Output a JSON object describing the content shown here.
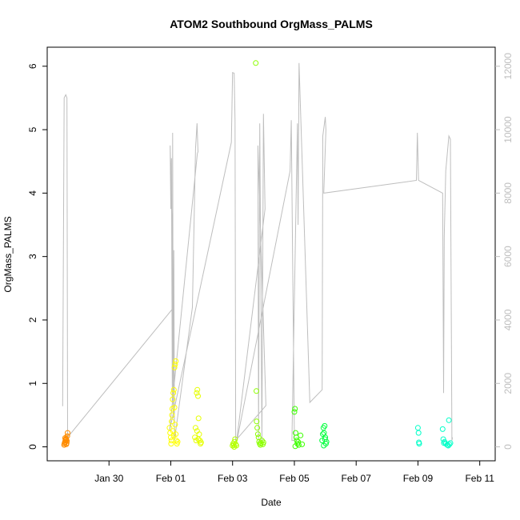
{
  "chart_data": {
    "type": "scatter",
    "title": "ATOM2 Southbound OrgMass_PALMS",
    "xlabel": "Date",
    "ylabel": "OrgMass_PALMS",
    "x_unit": "days",
    "x_ticks": [
      {
        "label": "Jan 30",
        "value": 30
      },
      {
        "label": "Feb 01",
        "value": 32
      },
      {
        "label": "Feb 03",
        "value": 34
      },
      {
        "label": "Feb 05",
        "value": 36
      },
      {
        "label": "Feb 07",
        "value": 38
      },
      {
        "label": "Feb 09",
        "value": 40
      },
      {
        "label": "Feb 11",
        "value": 42
      }
    ],
    "xlim": [
      28.0,
      42.5
    ],
    "ylim": [
      -0.22,
      6.3
    ],
    "y_ticks": [
      0,
      1,
      2,
      3,
      4,
      5,
      6
    ],
    "y2_ticks": [
      0,
      2000,
      4000,
      6000,
      8000,
      10000,
      12000
    ],
    "y2lim": [
      -440,
      12600
    ],
    "grid": false,
    "series": [
      {
        "color": "#FF8C00",
        "points": [
          [
            28.55,
            0.03
          ],
          [
            28.56,
            0.05
          ],
          [
            28.57,
            0.07
          ],
          [
            28.58,
            0.08
          ],
          [
            28.59,
            0.1
          ],
          [
            28.6,
            0.12
          ],
          [
            28.61,
            0.13
          ],
          [
            28.62,
            0.11
          ],
          [
            28.63,
            0.06
          ],
          [
            28.64,
            0.09
          ],
          [
            28.65,
            0.17
          ],
          [
            28.66,
            0.22
          ],
          [
            28.58,
            0.14
          ],
          [
            28.62,
            0.04
          ]
        ]
      },
      {
        "color": "#FFFF00",
        "points": [
          [
            31.96,
            0.3
          ],
          [
            31.98,
            0.22
          ],
          [
            32.0,
            0.15
          ],
          [
            32.02,
            0.1
          ],
          [
            32.03,
            0.4
          ],
          [
            32.04,
            0.5
          ],
          [
            32.05,
            0.6
          ],
          [
            32.06,
            0.75
          ],
          [
            32.08,
            0.85
          ],
          [
            32.1,
            0.9
          ],
          [
            32.12,
            0.62
          ],
          [
            32.14,
            0.35
          ],
          [
            32.16,
            0.2
          ],
          [
            32.18,
            0.1
          ],
          [
            32.2,
            0.05
          ],
          [
            32.22,
            0.08
          ],
          [
            32.12,
            1.25
          ],
          [
            32.14,
            1.3
          ],
          [
            32.16,
            1.35
          ],
          [
            32.01,
            0.05
          ],
          [
            32.07,
            0.25
          ],
          [
            32.09,
            0.18
          ]
        ]
      },
      {
        "color": "#E6FF00",
        "points": [
          [
            32.78,
            0.15
          ],
          [
            32.8,
            0.3
          ],
          [
            32.82,
            0.1
          ],
          [
            32.84,
            0.85
          ],
          [
            32.86,
            0.9
          ],
          [
            32.88,
            0.8
          ],
          [
            32.9,
            0.45
          ],
          [
            32.92,
            0.2
          ],
          [
            32.94,
            0.1
          ],
          [
            32.96,
            0.05
          ],
          [
            32.98,
            0.07
          ],
          [
            32.85,
            0.25
          ],
          [
            32.89,
            0.12
          ]
        ]
      },
      {
        "color": "#B4FF00",
        "points": [
          [
            34.0,
            0.02
          ],
          [
            34.02,
            0.05
          ],
          [
            34.04,
            0.03
          ],
          [
            34.06,
            0.08
          ],
          [
            34.08,
            0.12
          ],
          [
            34.1,
            0.04
          ],
          [
            34.05,
            0.0
          ],
          [
            34.12,
            0.02
          ]
        ]
      },
      {
        "color": "#8CFF00",
        "points": [
          [
            34.75,
            6.05
          ],
          [
            34.77,
            0.88
          ],
          [
            34.78,
            0.4
          ],
          [
            34.8,
            0.3
          ],
          [
            34.82,
            0.2
          ],
          [
            34.84,
            0.15
          ],
          [
            34.86,
            0.08
          ],
          [
            34.88,
            0.05
          ],
          [
            34.9,
            0.03
          ],
          [
            34.92,
            0.06
          ],
          [
            34.95,
            0.1
          ],
          [
            34.98,
            0.04
          ],
          [
            35.0,
            0.07
          ]
        ]
      },
      {
        "color": "#3CFF00",
        "points": [
          [
            36.0,
            0.55
          ],
          [
            36.02,
            0.6
          ],
          [
            36.04,
            0.22
          ],
          [
            36.06,
            0.15
          ],
          [
            36.08,
            0.1
          ],
          [
            36.1,
            0.05
          ],
          [
            36.12,
            0.08
          ],
          [
            36.14,
            0.03
          ],
          [
            36.2,
            0.18
          ],
          [
            36.25,
            0.04
          ],
          [
            36.03,
            0.01
          ]
        ]
      },
      {
        "color": "#00FF3C",
        "points": [
          [
            36.9,
            0.1
          ],
          [
            36.92,
            0.2
          ],
          [
            36.94,
            0.3
          ],
          [
            36.96,
            0.22
          ],
          [
            36.98,
            0.33
          ],
          [
            37.0,
            0.15
          ],
          [
            37.02,
            0.05
          ],
          [
            37.04,
            0.08
          ],
          [
            36.95,
            0.02
          ],
          [
            36.99,
            0.12
          ]
        ]
      },
      {
        "color": "#00FFC8",
        "points": [
          [
            40.0,
            0.3
          ],
          [
            40.02,
            0.22
          ],
          [
            40.03,
            0.07
          ],
          [
            40.04,
            0.05
          ],
          [
            40.8,
            0.28
          ],
          [
            40.82,
            0.12
          ],
          [
            40.84,
            0.06
          ],
          [
            40.86,
            0.08
          ],
          [
            40.9,
            0.05
          ],
          [
            40.95,
            0.03
          ],
          [
            41.0,
            0.42
          ],
          [
            41.02,
            0.04
          ],
          [
            41.05,
            0.06
          ],
          [
            40.98,
            0.02
          ]
        ]
      }
    ],
    "secondary_line": {
      "color": "#bebebe",
      "points": [
        [
          28.5,
          1280
        ],
        [
          28.55,
          11000
        ],
        [
          28.6,
          11100
        ],
        [
          28.64,
          11000
        ],
        [
          28.66,
          300
        ],
        [
          32.1,
          4400
        ],
        [
          31.98,
          9500
        ],
        [
          32.0,
          7500
        ],
        [
          32.02,
          9100
        ],
        [
          32.05,
          1400
        ],
        [
          32.06,
          9900
        ],
        [
          32.08,
          900
        ],
        [
          32.1,
          6200
        ],
        [
          32.12,
          200
        ],
        [
          32.7,
          4400
        ],
        [
          32.8,
          9400
        ],
        [
          32.85,
          10200
        ],
        [
          32.88,
          9300
        ],
        [
          32.86,
          9250
        ],
        [
          31.96,
          500
        ],
        [
          33.96,
          9600
        ],
        [
          34.0,
          11800
        ],
        [
          34.05,
          11780
        ],
        [
          34.08,
          10300
        ],
        [
          34.1,
          200
        ],
        [
          35.08,
          1300
        ],
        [
          34.82,
          9500
        ],
        [
          34.84,
          200
        ],
        [
          34.88,
          10200
        ],
        [
          34.95,
          200
        ],
        [
          35.0,
          10500
        ],
        [
          35.05,
          7500
        ],
        [
          34.12,
          100
        ],
        [
          35.86,
          8700
        ],
        [
          35.9,
          10300
        ],
        [
          36.0,
          200
        ],
        [
          35.92,
          200
        ],
        [
          36.1,
          10200
        ],
        [
          36.12,
          7000
        ],
        [
          36.15,
          12100
        ],
        [
          36.5,
          1400
        ],
        [
          36.9,
          1800
        ],
        [
          36.92,
          9800
        ],
        [
          37.0,
          10400
        ],
        [
          37.02,
          10000
        ],
        [
          36.95,
          8000
        ],
        [
          39.95,
          8400
        ],
        [
          39.98,
          9900
        ],
        [
          40.02,
          8400
        ],
        [
          40.8,
          8000
        ],
        [
          40.83,
          1700
        ],
        [
          40.85,
          6600
        ],
        [
          40.9,
          8700
        ],
        [
          41.0,
          9800
        ],
        [
          41.05,
          9700
        ],
        [
          41.1,
          200
        ],
        [
          41.12,
          300
        ]
      ]
    }
  }
}
